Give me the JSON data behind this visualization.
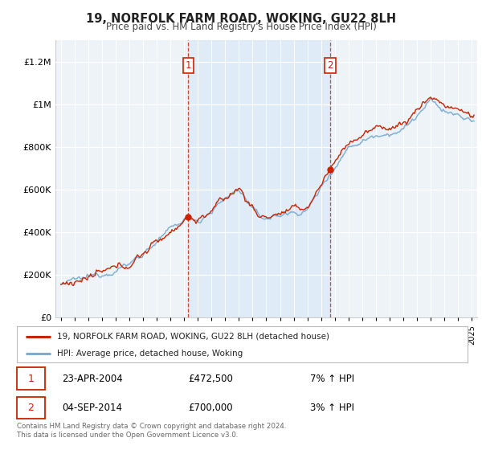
{
  "title": "19, NORFOLK FARM ROAD, WOKING, GU22 8LH",
  "subtitle": "Price paid vs. HM Land Registry's House Price Index (HPI)",
  "sale1_date": "23-APR-2004",
  "sale1_price": 472500,
  "sale1_hpi": "7% ↑ HPI",
  "sale1_x": 2004.3,
  "sale2_date": "04-SEP-2014",
  "sale2_price": 700000,
  "sale2_hpi": "3% ↑ HPI",
  "sale2_x": 2014.67,
  "legend_line1": "19, NORFOLK FARM ROAD, WOKING, GU22 8LH (detached house)",
  "legend_line2": "HPI: Average price, detached house, Woking",
  "footnote": "Contains HM Land Registry data © Crown copyright and database right 2024.\nThis data is licensed under the Open Government Licence v3.0.",
  "hpi_color": "#7aadd4",
  "price_color": "#cc2200",
  "shade_color": "#d8e8f5",
  "vline_color": "#cc2200",
  "ylim_min": 0,
  "ylim_max": 1300000,
  "xlim_min": 1994.6,
  "xlim_max": 2025.4,
  "bg_color": "#eef3f8"
}
